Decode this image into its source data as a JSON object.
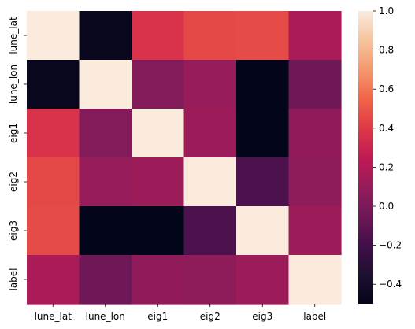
{
  "chart_data": {
    "type": "heatmap",
    "title": "",
    "xlabel": "",
    "ylabel": "",
    "rows": [
      "lune_lat",
      "lune_lon",
      "eig1",
      "eig2",
      "eig3",
      "label"
    ],
    "columns": [
      "lune_lat",
      "lune_lon",
      "eig1",
      "eig2",
      "eig3",
      "label"
    ],
    "values": [
      [
        1.0,
        -0.47,
        0.37,
        0.45,
        0.46,
        0.17
      ],
      [
        -0.47,
        1.0,
        0.03,
        0.1,
        -0.5,
        -0.05
      ],
      [
        0.37,
        0.03,
        1.0,
        0.12,
        -0.5,
        0.08
      ],
      [
        0.45,
        0.1,
        0.12,
        1.0,
        -0.16,
        0.07
      ],
      [
        0.46,
        -0.5,
        -0.5,
        -0.16,
        1.0,
        0.12
      ],
      [
        0.17,
        -0.05,
        0.08,
        0.07,
        0.12,
        1.0
      ]
    ],
    "colorbar": {
      "range": [
        -0.5,
        1.0
      ],
      "ticks": [
        "1.0",
        "0.8",
        "0.6",
        "0.4",
        "0.2",
        "0.0",
        "−0.2",
        "−0.4"
      ],
      "tick_values": [
        1.0,
        0.8,
        0.6,
        0.4,
        0.2,
        0.0,
        -0.2,
        -0.4
      ],
      "colormap": "rocket"
    },
    "grid": false,
    "legend": "colorbar-right"
  }
}
